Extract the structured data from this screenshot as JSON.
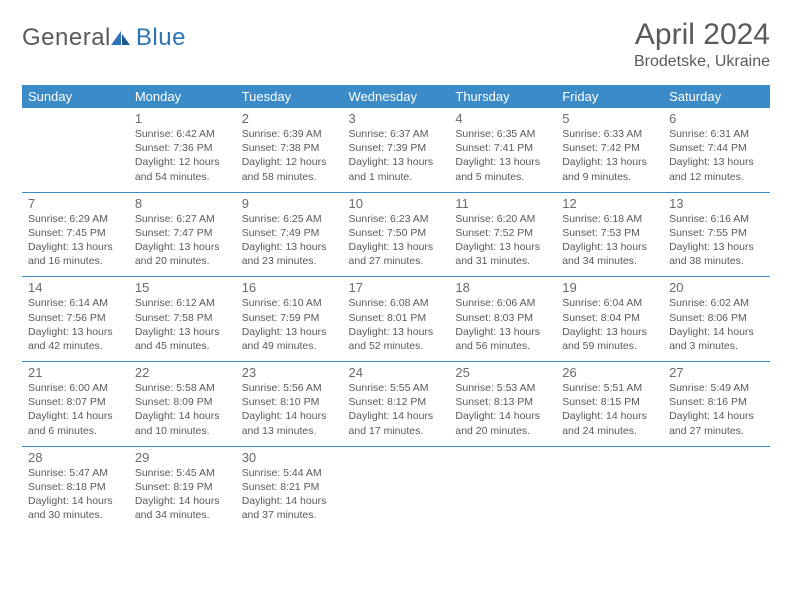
{
  "brand": {
    "part1": "General",
    "part2": "Blue"
  },
  "title": "April 2024",
  "location": "Brodetske, Ukraine",
  "accent_color": "#3b8bc9",
  "header_bg": "#3b8bc9",
  "text_color": "#5a5a5a",
  "day_names": [
    "Sunday",
    "Monday",
    "Tuesday",
    "Wednesday",
    "Thursday",
    "Friday",
    "Saturday"
  ],
  "weeks": [
    [
      null,
      {
        "n": "1",
        "sr": "Sunrise: 6:42 AM",
        "ss": "Sunset: 7:36 PM",
        "d1": "Daylight: 12 hours",
        "d2": "and 54 minutes."
      },
      {
        "n": "2",
        "sr": "Sunrise: 6:39 AM",
        "ss": "Sunset: 7:38 PM",
        "d1": "Daylight: 12 hours",
        "d2": "and 58 minutes."
      },
      {
        "n": "3",
        "sr": "Sunrise: 6:37 AM",
        "ss": "Sunset: 7:39 PM",
        "d1": "Daylight: 13 hours",
        "d2": "and 1 minute."
      },
      {
        "n": "4",
        "sr": "Sunrise: 6:35 AM",
        "ss": "Sunset: 7:41 PM",
        "d1": "Daylight: 13 hours",
        "d2": "and 5 minutes."
      },
      {
        "n": "5",
        "sr": "Sunrise: 6:33 AM",
        "ss": "Sunset: 7:42 PM",
        "d1": "Daylight: 13 hours",
        "d2": "and 9 minutes."
      },
      {
        "n": "6",
        "sr": "Sunrise: 6:31 AM",
        "ss": "Sunset: 7:44 PM",
        "d1": "Daylight: 13 hours",
        "d2": "and 12 minutes."
      }
    ],
    [
      {
        "n": "7",
        "sr": "Sunrise: 6:29 AM",
        "ss": "Sunset: 7:45 PM",
        "d1": "Daylight: 13 hours",
        "d2": "and 16 minutes."
      },
      {
        "n": "8",
        "sr": "Sunrise: 6:27 AM",
        "ss": "Sunset: 7:47 PM",
        "d1": "Daylight: 13 hours",
        "d2": "and 20 minutes."
      },
      {
        "n": "9",
        "sr": "Sunrise: 6:25 AM",
        "ss": "Sunset: 7:49 PM",
        "d1": "Daylight: 13 hours",
        "d2": "and 23 minutes."
      },
      {
        "n": "10",
        "sr": "Sunrise: 6:23 AM",
        "ss": "Sunset: 7:50 PM",
        "d1": "Daylight: 13 hours",
        "d2": "and 27 minutes."
      },
      {
        "n": "11",
        "sr": "Sunrise: 6:20 AM",
        "ss": "Sunset: 7:52 PM",
        "d1": "Daylight: 13 hours",
        "d2": "and 31 minutes."
      },
      {
        "n": "12",
        "sr": "Sunrise: 6:18 AM",
        "ss": "Sunset: 7:53 PM",
        "d1": "Daylight: 13 hours",
        "d2": "and 34 minutes."
      },
      {
        "n": "13",
        "sr": "Sunrise: 6:16 AM",
        "ss": "Sunset: 7:55 PM",
        "d1": "Daylight: 13 hours",
        "d2": "and 38 minutes."
      }
    ],
    [
      {
        "n": "14",
        "sr": "Sunrise: 6:14 AM",
        "ss": "Sunset: 7:56 PM",
        "d1": "Daylight: 13 hours",
        "d2": "and 42 minutes."
      },
      {
        "n": "15",
        "sr": "Sunrise: 6:12 AM",
        "ss": "Sunset: 7:58 PM",
        "d1": "Daylight: 13 hours",
        "d2": "and 45 minutes."
      },
      {
        "n": "16",
        "sr": "Sunrise: 6:10 AM",
        "ss": "Sunset: 7:59 PM",
        "d1": "Daylight: 13 hours",
        "d2": "and 49 minutes."
      },
      {
        "n": "17",
        "sr": "Sunrise: 6:08 AM",
        "ss": "Sunset: 8:01 PM",
        "d1": "Daylight: 13 hours",
        "d2": "and 52 minutes."
      },
      {
        "n": "18",
        "sr": "Sunrise: 6:06 AM",
        "ss": "Sunset: 8:03 PM",
        "d1": "Daylight: 13 hours",
        "d2": "and 56 minutes."
      },
      {
        "n": "19",
        "sr": "Sunrise: 6:04 AM",
        "ss": "Sunset: 8:04 PM",
        "d1": "Daylight: 13 hours",
        "d2": "and 59 minutes."
      },
      {
        "n": "20",
        "sr": "Sunrise: 6:02 AM",
        "ss": "Sunset: 8:06 PM",
        "d1": "Daylight: 14 hours",
        "d2": "and 3 minutes."
      }
    ],
    [
      {
        "n": "21",
        "sr": "Sunrise: 6:00 AM",
        "ss": "Sunset: 8:07 PM",
        "d1": "Daylight: 14 hours",
        "d2": "and 6 minutes."
      },
      {
        "n": "22",
        "sr": "Sunrise: 5:58 AM",
        "ss": "Sunset: 8:09 PM",
        "d1": "Daylight: 14 hours",
        "d2": "and 10 minutes."
      },
      {
        "n": "23",
        "sr": "Sunrise: 5:56 AM",
        "ss": "Sunset: 8:10 PM",
        "d1": "Daylight: 14 hours",
        "d2": "and 13 minutes."
      },
      {
        "n": "24",
        "sr": "Sunrise: 5:55 AM",
        "ss": "Sunset: 8:12 PM",
        "d1": "Daylight: 14 hours",
        "d2": "and 17 minutes."
      },
      {
        "n": "25",
        "sr": "Sunrise: 5:53 AM",
        "ss": "Sunset: 8:13 PM",
        "d1": "Daylight: 14 hours",
        "d2": "and 20 minutes."
      },
      {
        "n": "26",
        "sr": "Sunrise: 5:51 AM",
        "ss": "Sunset: 8:15 PM",
        "d1": "Daylight: 14 hours",
        "d2": "and 24 minutes."
      },
      {
        "n": "27",
        "sr": "Sunrise: 5:49 AM",
        "ss": "Sunset: 8:16 PM",
        "d1": "Daylight: 14 hours",
        "d2": "and 27 minutes."
      }
    ],
    [
      {
        "n": "28",
        "sr": "Sunrise: 5:47 AM",
        "ss": "Sunset: 8:18 PM",
        "d1": "Daylight: 14 hours",
        "d2": "and 30 minutes."
      },
      {
        "n": "29",
        "sr": "Sunrise: 5:45 AM",
        "ss": "Sunset: 8:19 PM",
        "d1": "Daylight: 14 hours",
        "d2": "and 34 minutes."
      },
      {
        "n": "30",
        "sr": "Sunrise: 5:44 AM",
        "ss": "Sunset: 8:21 PM",
        "d1": "Daylight: 14 hours",
        "d2": "and 37 minutes."
      },
      null,
      null,
      null,
      null
    ]
  ]
}
